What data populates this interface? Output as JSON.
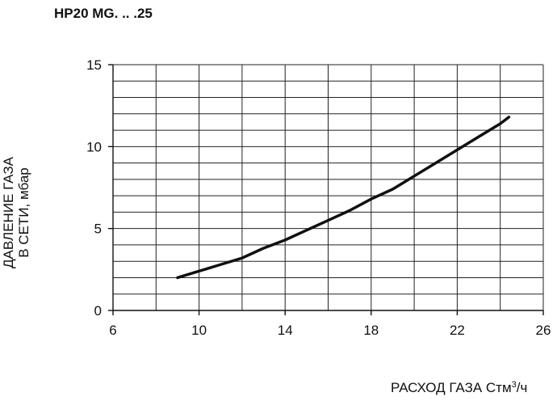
{
  "title": "HP20 MG. .. .25",
  "chart_data": {
    "type": "line",
    "title": "HP20 MG. .. .25",
    "ylabel_line1": "ДАВЛЕНИЕ ГАЗА",
    "ylabel_line2": "В СЕТИ, мбар",
    "xlabel_text": "РАСХОД ГАЗА Стм",
    "xlabel_sup": "3",
    "xlabel_tail": "/ч",
    "xlim": [
      6,
      26
    ],
    "ylim": [
      0,
      15
    ],
    "x_ticks": [
      6,
      10,
      14,
      18,
      22,
      26
    ],
    "y_ticks": [
      0,
      5,
      10,
      15
    ],
    "grid": true,
    "x_grid_step": 2,
    "y_grid_step": 1,
    "series": [
      {
        "color": "#111111",
        "x": [
          9,
          10,
          11,
          12,
          13,
          14,
          15,
          16,
          17,
          18,
          19,
          20,
          21,
          22,
          23,
          24,
          24.4
        ],
        "y": [
          2.0,
          2.4,
          2.8,
          3.2,
          3.8,
          4.3,
          4.9,
          5.5,
          6.1,
          6.8,
          7.4,
          8.2,
          9.0,
          9.8,
          10.6,
          11.4,
          11.8
        ]
      }
    ]
  }
}
